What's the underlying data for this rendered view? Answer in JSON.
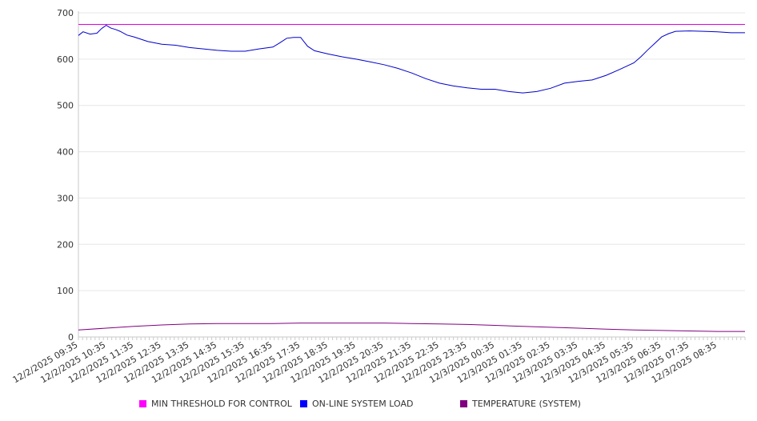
{
  "chart_data": {
    "type": "line",
    "title": "",
    "xlabel": "",
    "ylabel": "",
    "ylim": [
      0,
      700
    ],
    "yticks": [
      0,
      100,
      200,
      300,
      400,
      500,
      600,
      700
    ],
    "grid": true,
    "legend_position": "bottom",
    "x_start": "12/2/2025 09:35",
    "x_end": "12/3/2025 09:35",
    "x_tick_labels": [
      "12/2/2025 09:35",
      "12/2/2025 10:35",
      "12/2/2025 11:35",
      "12/2/2025 12:35",
      "12/2/2025 13:35",
      "12/2/2025 14:35",
      "12/2/2025 15:35",
      "12/2/2025 16:35",
      "12/2/2025 17:35",
      "12/2/2025 18:35",
      "12/2/2025 19:35",
      "12/2/2025 20:35",
      "12/2/2025 21:35",
      "12/2/2025 22:35",
      "12/2/2025 23:35",
      "12/3/2025 00:35",
      "12/3/2025 01:35",
      "12/3/2025 02:35",
      "12/3/2025 03:35",
      "12/3/2025 04:35",
      "12/3/2025 05:35",
      "12/3/2025 06:35",
      "12/3/2025 07:35",
      "12/3/2025 08:35"
    ],
    "series": [
      {
        "name": "MIN THRESHOLD FOR CONTROL",
        "color": "#e000e0",
        "legend_color": "#ff00ff",
        "x": [
          "12/2/2025 09:35",
          "12/3/2025 09:35"
        ],
        "values": [
          675,
          675
        ]
      },
      {
        "name": "ON-LINE SYSTEM LOAD",
        "color": "#0000cc",
        "legend_color": "#0000ff",
        "x": [
          "12/2/2025 09:35",
          "12/2/2025 09:45",
          "12/2/2025 10:00",
          "12/2/2025 10:15",
          "12/2/2025 10:25",
          "12/2/2025 10:35",
          "12/2/2025 10:45",
          "12/2/2025 10:55",
          "12/2/2025 11:05",
          "12/2/2025 11:20",
          "12/2/2025 11:35",
          "12/2/2025 12:05",
          "12/2/2025 12:35",
          "12/2/2025 13:05",
          "12/2/2025 13:35",
          "12/2/2025 14:05",
          "12/2/2025 14:35",
          "12/2/2025 15:05",
          "12/2/2025 15:35",
          "12/2/2025 16:05",
          "12/2/2025 16:35",
          "12/2/2025 16:50",
          "12/2/2025 17:05",
          "12/2/2025 17:20",
          "12/2/2025 17:35",
          "12/2/2025 17:50",
          "12/2/2025 18:05",
          "12/2/2025 18:35",
          "12/2/2025 19:05",
          "12/2/2025 19:35",
          "12/2/2025 20:05",
          "12/2/2025 20:35",
          "12/2/2025 21:05",
          "12/2/2025 21:35",
          "12/2/2025 22:05",
          "12/2/2025 22:35",
          "12/2/2025 23:05",
          "12/2/2025 23:35",
          "12/3/2025 00:05",
          "12/3/2025 00:35",
          "12/3/2025 01:05",
          "12/3/2025 01:35",
          "12/3/2025 02:05",
          "12/3/2025 02:35",
          "12/3/2025 03:05",
          "12/3/2025 03:35",
          "12/3/2025 04:05",
          "12/3/2025 04:35",
          "12/3/2025 05:05",
          "12/3/2025 05:35",
          "12/3/2025 05:50",
          "12/3/2025 06:05",
          "12/3/2025 06:20",
          "12/3/2025 06:35",
          "12/3/2025 06:50",
          "12/3/2025 07:05",
          "12/3/2025 07:35",
          "12/3/2025 08:05",
          "12/3/2025 08:35",
          "12/3/2025 09:05",
          "12/3/2025 09:35"
        ],
        "values": [
          651,
          659,
          654,
          656,
          666,
          673,
          667,
          664,
          660,
          652,
          648,
          638,
          632,
          630,
          625,
          622,
          619,
          617,
          617,
          622,
          626,
          635,
          645,
          647,
          647,
          628,
          618,
          611,
          605,
          600,
          594,
          588,
          580,
          570,
          558,
          548,
          542,
          538,
          535,
          535,
          530,
          527,
          530,
          537,
          548,
          552,
          555,
          565,
          578,
          592,
          605,
          620,
          634,
          648,
          655,
          660,
          661,
          660,
          659,
          657,
          657
        ]
      },
      {
        "name": "TEMPERATURE (SYSTEM)",
        "color": "#800080",
        "legend_color": "#800080",
        "x": [
          "12/2/2025 09:35",
          "12/2/2025 10:35",
          "12/2/2025 11:35",
          "12/2/2025 12:35",
          "12/2/2025 13:35",
          "12/2/2025 14:35",
          "12/2/2025 15:35",
          "12/2/2025 16:35",
          "12/2/2025 17:35",
          "12/2/2025 18:35",
          "12/2/2025 19:35",
          "12/2/2025 20:35",
          "12/2/2025 21:35",
          "12/2/2025 22:35",
          "12/2/2025 23:35",
          "12/3/2025 00:35",
          "12/3/2025 01:35",
          "12/3/2025 02:35",
          "12/3/2025 03:35",
          "12/3/2025 04:35",
          "12/3/2025 05:35",
          "12/3/2025 06:35",
          "12/3/2025 07:35",
          "12/3/2025 08:35",
          "12/3/2025 09:35"
        ],
        "values": [
          15,
          19,
          23,
          26,
          28,
          29,
          29,
          29,
          30,
          30,
          30,
          30,
          29,
          28,
          27,
          25,
          23,
          21,
          19,
          17,
          15,
          14,
          13,
          12,
          12
        ]
      }
    ]
  }
}
